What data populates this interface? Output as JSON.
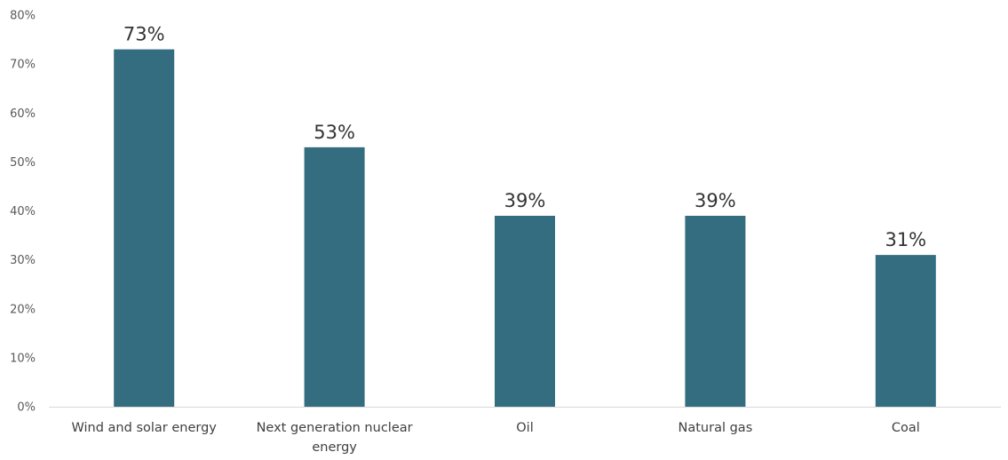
{
  "chart_data": {
    "type": "bar",
    "title": "",
    "xlabel": "",
    "ylabel": "",
    "categories": [
      "Wind and solar energy",
      "Next generation nuclear energy",
      "Oil",
      "Natural gas",
      "Coal"
    ],
    "category_label_lines": [
      [
        "Wind and solar energy"
      ],
      [
        "Next generation nuclear",
        "energy"
      ],
      [
        "Oil"
      ],
      [
        "Natural gas"
      ],
      [
        "Coal"
      ]
    ],
    "values": [
      73,
      53,
      39,
      39,
      31
    ],
    "data_labels": [
      "73%",
      "53%",
      "39%",
      "39%",
      "31%"
    ],
    "ylim": [
      0,
      80
    ],
    "y_ticks": [
      0,
      10,
      20,
      30,
      40,
      50,
      60,
      70,
      80
    ],
    "y_tick_labels": [
      "0%",
      "10%",
      "20%",
      "30%",
      "40%",
      "50%",
      "60%",
      "70%",
      "80%"
    ],
    "grid": false,
    "legend": "none",
    "colors": {
      "bar": "#336d7f",
      "axis": "#d9d9d9"
    }
  }
}
